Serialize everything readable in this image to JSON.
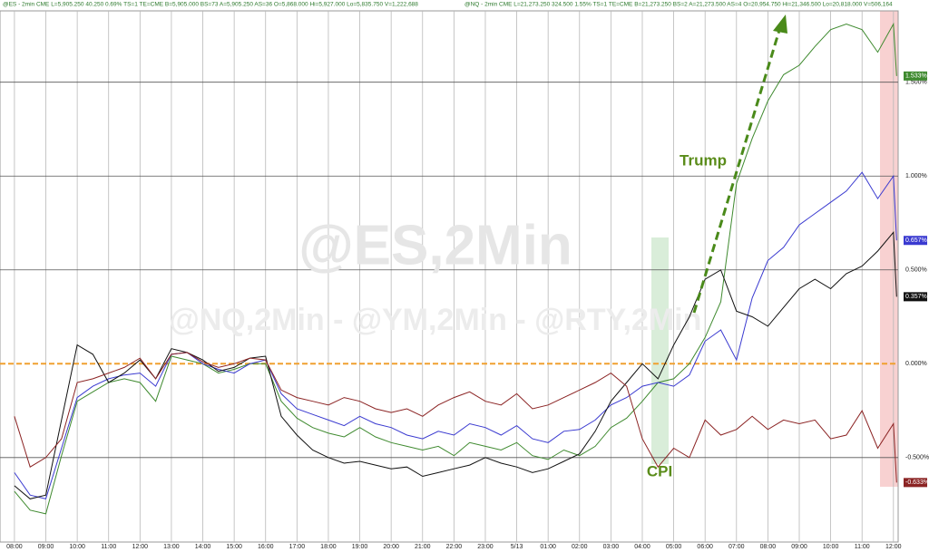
{
  "header": [
    "@ES - 2min CME  L=5,905.250  40.250  0.69%  TS=1  TE=CME  B=5,905.000  BS=73  A=5,905.250  AS=36  O=5,868.000  Hi=5,927.000  Lo=5,835.750  V=1,222,688",
    "@NQ - 2min CME  L=21,273.250  324.500  1.55%  TS=1  TE=CME  B=21,273.250  BS=2  A=21,273.500  AS=4  O=20,954.750  Hi=21,346.500  Lo=20,818.000  V=506,164"
  ],
  "chart_data": {
    "type": "line",
    "watermark": "@ES,2Min",
    "sub_watermark": "@NQ,2Min - @YM,2Min - @RTY,2Min",
    "annotations": [
      "Trump",
      "CPI"
    ],
    "x": [
      0,
      0.5,
      1,
      1.5,
      2,
      2.5,
      3,
      3.5,
      4,
      4.5,
      5,
      5.5,
      6,
      6.5,
      7,
      7.5,
      8,
      8.5,
      9,
      9.5,
      10,
      10.5,
      11,
      11.5,
      12,
      12.5,
      13,
      13.5,
      14,
      14.5,
      15,
      15.5,
      16,
      16.5,
      17,
      17.5,
      18,
      18.5,
      19,
      19.5,
      20,
      20.5,
      21,
      21.5,
      22,
      22.5,
      23,
      23.5,
      24,
      24.5,
      25,
      25.5,
      26,
      26.5,
      27,
      27.5,
      28,
      28.1
    ],
    "xlim": [
      -0.46,
      28.15
    ],
    "xticks": [
      {
        "value": 0,
        "label": "08:00"
      },
      {
        "value": 1,
        "label": "09:00"
      },
      {
        "value": 2,
        "label": "10:00"
      },
      {
        "value": 3,
        "label": "11:00"
      },
      {
        "value": 4,
        "label": "12:00"
      },
      {
        "value": 5,
        "label": "13:00"
      },
      {
        "value": 6,
        "label": "14:00"
      },
      {
        "value": 7,
        "label": "15:00"
      },
      {
        "value": 8,
        "label": "16:00"
      },
      {
        "value": 9,
        "label": "17:00"
      },
      {
        "value": 10,
        "label": "18:00"
      },
      {
        "value": 11,
        "label": "19:00"
      },
      {
        "value": 12,
        "label": "20:00"
      },
      {
        "value": 13,
        "label": "21:00"
      },
      {
        "value": 14,
        "label": "22:00"
      },
      {
        "value": 15,
        "label": "23:00"
      },
      {
        "value": 16,
        "label": "5/13"
      },
      {
        "value": 17,
        "label": "01:00"
      },
      {
        "value": 18,
        "label": "02:00"
      },
      {
        "value": 19,
        "label": "03:00"
      },
      {
        "value": 20,
        "label": "04:00"
      },
      {
        "value": 21,
        "label": "05:00"
      },
      {
        "value": 22,
        "label": "06:00"
      },
      {
        "value": 23,
        "label": "07:00"
      },
      {
        "value": 24,
        "label": "08:00"
      },
      {
        "value": 25,
        "label": "09:00"
      },
      {
        "value": 26,
        "label": "10:00"
      },
      {
        "value": 27,
        "label": "11:00"
      },
      {
        "value": 28,
        "label": "12:00"
      }
    ],
    "ylim": [
      -0.95,
      1.88
    ],
    "yticks": [
      {
        "value": -0.5,
        "label": "-0.500%"
      },
      {
        "value": 0,
        "label": "0.000%"
      },
      {
        "value": 0.5,
        "label": "0.500%"
      },
      {
        "value": 1,
        "label": "1.000%"
      },
      {
        "value": 1.5,
        "label": "1.500%"
      }
    ],
    "grid": true,
    "zero_line_color": "#f0a030",
    "series": [
      {
        "color": "#3f8a2f",
        "values": [
          -0.68,
          -0.78,
          -0.8,
          -0.49,
          -0.2,
          -0.15,
          -0.1,
          -0.08,
          -0.1,
          -0.2,
          0.04,
          0.02,
          0,
          -0.05,
          -0.03,
          0,
          0,
          -0.2,
          -0.29,
          -0.34,
          -0.37,
          -0.39,
          -0.34,
          -0.39,
          -0.42,
          -0.44,
          -0.46,
          -0.44,
          -0.49,
          -0.42,
          -0.44,
          -0.46,
          -0.42,
          -0.49,
          -0.51,
          -0.46,
          -0.49,
          -0.44,
          -0.34,
          -0.29,
          -0.2,
          -0.1,
          -0.08,
          0,
          0.14,
          0.33,
          0.96,
          1.2,
          1.4,
          1.54,
          1.59,
          1.69,
          1.78,
          1.81,
          1.78,
          1.66,
          1.81,
          1.533
        ],
        "end_label": {
          "value": 1.533,
          "label": "1.533%"
        }
      },
      {
        "color": "#3a3ad0",
        "values": [
          -0.58,
          -0.7,
          -0.72,
          -0.45,
          -0.18,
          -0.12,
          -0.08,
          -0.06,
          -0.05,
          -0.12,
          0.05,
          0.06,
          0,
          -0.03,
          -0.05,
          0,
          0.02,
          -0.16,
          -0.24,
          -0.27,
          -0.3,
          -0.33,
          -0.28,
          -0.32,
          -0.34,
          -0.38,
          -0.4,
          -0.36,
          -0.38,
          -0.32,
          -0.34,
          -0.38,
          -0.33,
          -0.4,
          -0.42,
          -0.36,
          -0.35,
          -0.3,
          -0.22,
          -0.18,
          -0.12,
          -0.1,
          -0.12,
          -0.06,
          0.12,
          0.18,
          0.02,
          0.35,
          0.55,
          0.62,
          0.74,
          0.8,
          0.86,
          0.92,
          1.02,
          0.88,
          1.0,
          0.657
        ],
        "end_label": {
          "value": 0.657,
          "label": "0.657%"
        }
      },
      {
        "color": "#111111",
        "values": [
          -0.65,
          -0.72,
          -0.7,
          -0.3,
          0.1,
          0.05,
          -0.1,
          -0.05,
          0.02,
          -0.08,
          0.08,
          0.06,
          0.02,
          -0.04,
          -0.02,
          0.03,
          0.04,
          -0.28,
          -0.38,
          -0.46,
          -0.5,
          -0.53,
          -0.52,
          -0.54,
          -0.56,
          -0.55,
          -0.6,
          -0.58,
          -0.56,
          -0.54,
          -0.5,
          -0.53,
          -0.55,
          -0.58,
          -0.56,
          -0.52,
          -0.48,
          -0.36,
          -0.2,
          -0.1,
          0,
          -0.08,
          0.1,
          0.25,
          0.45,
          0.5,
          0.28,
          0.25,
          0.2,
          0.3,
          0.4,
          0.45,
          0.4,
          0.48,
          0.52,
          0.6,
          0.7,
          0.357
        ],
        "end_label": {
          "value": 0.357,
          "label": "0.357%"
        }
      },
      {
        "color": "#8b2323",
        "values": [
          -0.28,
          -0.55,
          -0.5,
          -0.4,
          -0.1,
          -0.08,
          -0.05,
          -0.02,
          0.03,
          -0.08,
          0.05,
          0.06,
          0.01,
          -0.02,
          0,
          0.03,
          0.02,
          -0.14,
          -0.18,
          -0.2,
          -0.22,
          -0.18,
          -0.2,
          -0.24,
          -0.26,
          -0.24,
          -0.28,
          -0.22,
          -0.18,
          -0.15,
          -0.2,
          -0.22,
          -0.16,
          -0.24,
          -0.22,
          -0.18,
          -0.14,
          -0.1,
          -0.05,
          -0.12,
          -0.4,
          -0.55,
          -0.45,
          -0.5,
          -0.3,
          -0.38,
          -0.35,
          -0.28,
          -0.35,
          -0.3,
          -0.32,
          -0.3,
          -0.4,
          -0.38,
          -0.25,
          -0.45,
          -0.32,
          -0.633
        ],
        "end_label": {
          "value": -0.633,
          "label": "-0.633%"
        }
      }
    ]
  }
}
